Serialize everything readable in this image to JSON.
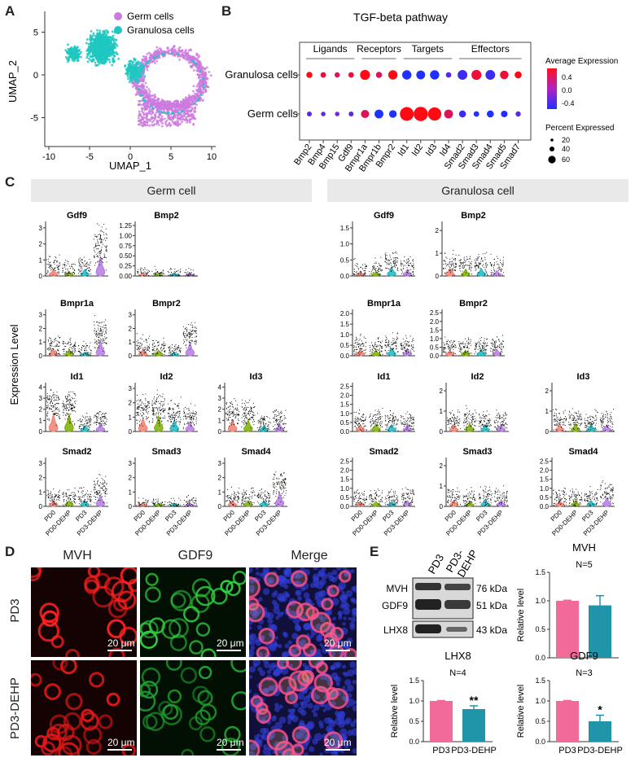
{
  "panel_labels": {
    "a": "A",
    "b": "B",
    "c": "C",
    "d": "D",
    "e": "E"
  },
  "panelA": {
    "xlabel": "UMAP_1",
    "ylabel": "UMAP_2",
    "xticks": [
      -10,
      -5,
      0,
      5,
      10
    ],
    "yticks": [
      -5,
      0,
      5
    ],
    "legend": [
      {
        "name": "Germ cells",
        "color": "#cc79e0"
      },
      {
        "name": "Granulosa cells",
        "color": "#1ec8c0"
      }
    ]
  },
  "panelB": {
    "title": "TGF-beta pathway",
    "groups": [
      {
        "label": "Ligands"
      },
      {
        "label": "Receptors"
      },
      {
        "label": "Targets"
      },
      {
        "label": "Effectors"
      }
    ],
    "rows": [
      "Granulosa cells",
      "Germ cells"
    ],
    "genes": [
      "Bmp2",
      "Bmp4",
      "Bmp15",
      "Gdf9",
      "Bmpr1a",
      "Bmpr1b",
      "Bmpr2",
      "Id1",
      "Id2",
      "Id3",
      "Id4",
      "Smad2",
      "Smad3",
      "Smad4",
      "Smad5",
      "Smad7"
    ],
    "legend_color_title": "Average Expression",
    "color_ticks": [
      "0.4",
      "0.0",
      "-0.4"
    ],
    "legend_size_title": "Percent Expressed",
    "size_ticks": [
      "20",
      "40",
      "60"
    ]
  },
  "chart_data": {
    "type": "scatter",
    "title": "TGF-beta pathway",
    "categories": [
      "Bmp2",
      "Bmp4",
      "Bmp15",
      "Gdf9",
      "Bmpr1a",
      "Bmpr1b",
      "Bmpr2",
      "Id1",
      "Id2",
      "Id3",
      "Id4",
      "Smad2",
      "Smad3",
      "Smad4",
      "Smad5",
      "Smad7"
    ],
    "series": [
      {
        "name": "Granulosa cells",
        "avg_expression": [
          0.5,
          0.4,
          0.3,
          0.4,
          0.5,
          0.3,
          0.5,
          -0.5,
          -0.5,
          -0.5,
          -0.3,
          -0.4,
          0.4,
          -0.4,
          0.4,
          0.5
        ],
        "percent_expressed": [
          8,
          6,
          5,
          6,
          30,
          8,
          25,
          25,
          22,
          25,
          6,
          28,
          30,
          28,
          20,
          12
        ]
      },
      {
        "name": "Germ cells",
        "avg_expression": [
          -0.3,
          -0.3,
          -0.2,
          -0.3,
          0.3,
          -0.5,
          -0.5,
          0.5,
          0.5,
          0.5,
          0.3,
          -0.4,
          -0.5,
          -0.5,
          -0.5,
          -0.3
        ],
        "percent_expressed": [
          4,
          3,
          3,
          4,
          18,
          22,
          15,
          65,
          70,
          60,
          22,
          12,
          6,
          12,
          10,
          5
        ]
      }
    ]
  },
  "panelC": {
    "header_left": "Germ cell",
    "header_right": "Granulosa cell",
    "ylabel": "Expression Level",
    "xcats": [
      "PD0",
      "PD0-DEHP",
      "PD3",
      "PD3-DEHP"
    ],
    "colors": [
      "#f08070",
      "#7cae00",
      "#1ab8c0",
      "#b47ae0"
    ],
    "germ": [
      {
        "gene": "Gdf9",
        "ticks": [
          "0",
          "1",
          "2",
          "3"
        ]
      },
      {
        "gene": "Bmp2",
        "ticks": [
          "0.00",
          "0.25",
          "0.50",
          "0.75",
          "1.00",
          "1.25"
        ]
      },
      {
        "gene": "Bmpr1a",
        "ticks": [
          "0",
          "1",
          "2",
          "3"
        ]
      },
      {
        "gene": "Bmpr2",
        "ticks": [
          "0",
          "1",
          "2",
          "3"
        ]
      },
      {
        "gene": "Id1",
        "ticks": [
          "0",
          "1",
          "2",
          "3",
          "4"
        ]
      },
      {
        "gene": "Id2",
        "ticks": [
          "0",
          "1",
          "2",
          "3"
        ]
      },
      {
        "gene": "Id3",
        "ticks": [
          "0",
          "1",
          "2",
          "3",
          "4"
        ]
      },
      {
        "gene": "Smad2",
        "ticks": [
          "0",
          "1",
          "2",
          "3"
        ]
      },
      {
        "gene": "Smad3",
        "ticks": [
          "0",
          "1",
          "2",
          "3"
        ]
      },
      {
        "gene": "Smad4",
        "ticks": [
          "0",
          "1",
          "2",
          "3"
        ]
      }
    ],
    "gran": [
      {
        "gene": "Gdf9",
        "ticks": [
          "0.0",
          "0.5",
          "1.0",
          "1.5"
        ]
      },
      {
        "gene": "Bmp2",
        "ticks": [
          "0",
          "1",
          "2"
        ]
      },
      {
        "gene": "Bmpr1a",
        "ticks": [
          "0.0",
          "0.5",
          "1.0",
          "1.5",
          "2.0"
        ]
      },
      {
        "gene": "Bmpr2",
        "ticks": [
          "0.0",
          "0.5",
          "1.0",
          "1.5",
          "2.0",
          "2.5"
        ]
      },
      {
        "gene": "Id1",
        "ticks": [
          "0.0",
          "0.5",
          "1.0",
          "1.5",
          "2.0",
          "2.5"
        ]
      },
      {
        "gene": "Id2",
        "ticks": [
          "0",
          "1",
          "2"
        ]
      },
      {
        "gene": "Id3",
        "ticks": [
          "0",
          "1",
          "2"
        ]
      },
      {
        "gene": "Smad2",
        "ticks": [
          "0.0",
          "0.5",
          "1.0",
          "1.5",
          "2.0",
          "2.5"
        ]
      },
      {
        "gene": "Smad3",
        "ticks": [
          "0",
          "1",
          "2"
        ]
      },
      {
        "gene": "Smad4",
        "ticks": [
          "0.0",
          "0.5",
          "1.0",
          "1.5",
          "2.0",
          "2.5"
        ]
      }
    ]
  },
  "panelD": {
    "cols": [
      "MVH",
      "GDF9",
      "Merge"
    ],
    "rows": [
      "PD3",
      "PD3-DEHP"
    ],
    "scalebar": "20 μm"
  },
  "panelE": {
    "blot_lanes": [
      "PD3",
      "PD3-\nDEHP"
    ],
    "blot_lane1": "PD3",
    "blot_lane2a": "PD3-",
    "blot_lane2b": "DEHP",
    "bands": [
      {
        "name": "MVH",
        "kda": "76 kDa"
      },
      {
        "name": "GDF9",
        "kda": "51 kDa"
      },
      {
        "name": "LHX8",
        "kda": "43 kDa"
      }
    ],
    "ylabel": "Relative level",
    "xcats": [
      "PD3",
      "PD3-DEHP"
    ],
    "bars": [
      {
        "title": "MVH",
        "n": "N=5",
        "values": [
          1.0,
          0.92
        ],
        "err": [
          0.01,
          0.17
        ],
        "sig": ""
      },
      {
        "title": "LHX8",
        "n": "N=4",
        "values": [
          1.0,
          0.8
        ],
        "err": [
          0.01,
          0.08
        ],
        "sig": "**"
      },
      {
        "title": "GDF9",
        "n": "N=3",
        "values": [
          1.0,
          0.5
        ],
        "err": [
          0.01,
          0.15
        ],
        "sig": "*"
      }
    ],
    "yticks": [
      "0.0",
      "0.5",
      "1.0",
      "1.5"
    ],
    "colors": [
      "#f26a9a",
      "#2094a8"
    ]
  }
}
